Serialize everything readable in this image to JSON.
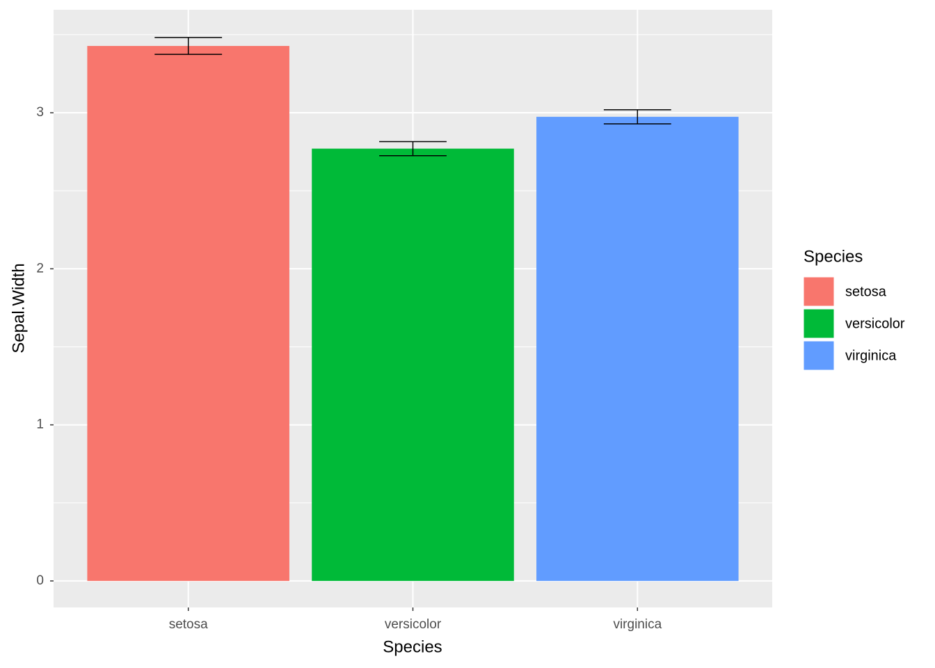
{
  "chart_data": {
    "type": "bar",
    "x_label": "Species",
    "y_label": "Sepal.Width",
    "categories": [
      "setosa",
      "versicolor",
      "virginica"
    ],
    "values": [
      3.428,
      2.77,
      2.974
    ],
    "errors": [
      0.054,
      0.045,
      0.045
    ],
    "colors": [
      "#F8766D",
      "#00BA38",
      "#619CFF"
    ],
    "ylim": [
      -0.17,
      3.66
    ],
    "yticks": [
      0,
      1,
      2,
      3
    ],
    "grid": true,
    "legend": {
      "title": "Species",
      "position": "right"
    }
  }
}
